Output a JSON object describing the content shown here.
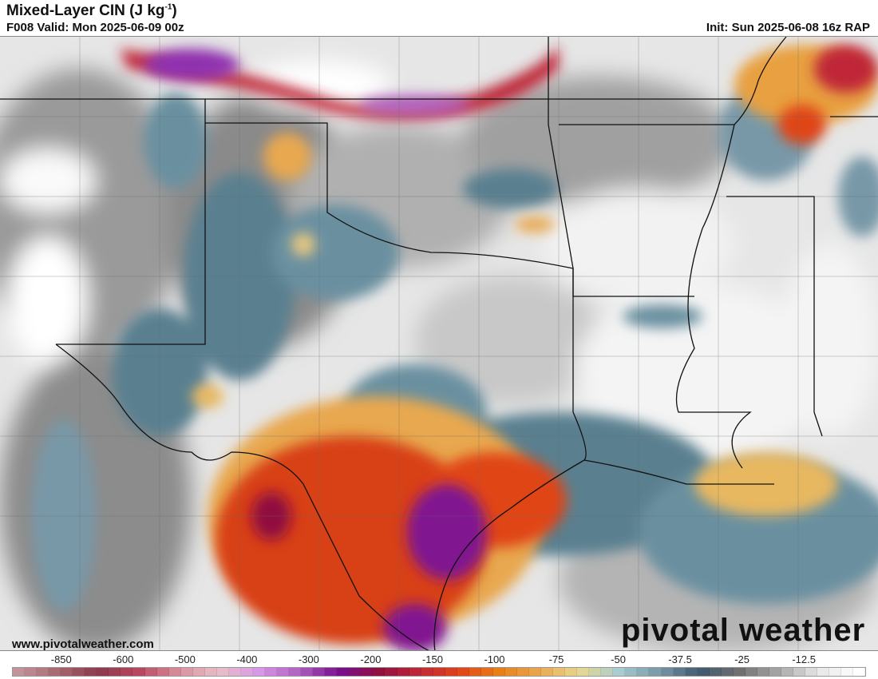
{
  "header": {
    "title": "Mixed-Layer CIN (J kg",
    "title_unit_exp": "-1",
    "title_close": ")",
    "valid": "F008 Valid: Mon 2025-06-09 00z",
    "init": "Init: Sun 2025-06-08 16z RAP"
  },
  "footer": {
    "url": "www.pivotalweather.com",
    "logo": "pivotal weather"
  },
  "colorbar": {
    "ticks": [
      "-850",
      "-600",
      "-500",
      "-400",
      "-300",
      "-200",
      "-150",
      "-100",
      "-75",
      "-50",
      "-37.5",
      "-25",
      "-12.5"
    ],
    "colors": [
      "#c0949a",
      "#a86870",
      "#8c3a4c",
      "#b84860",
      "#d8909c",
      "#e8c0c8",
      "#d898e8",
      "#b060c0",
      "#781090",
      "#901040",
      "#c02838",
      "#e04418",
      "#e88018",
      "#e8a850",
      "#e8d890",
      "#a8ccd0",
      "#7898a8",
      "#405a70",
      "#707070",
      "#a8a8a8",
      "#e8e8e8",
      "#ffffff"
    ],
    "swatch_count": 71
  },
  "legend_colors": {
    "gray_bg": "#b8b8b8",
    "teal": "#5a8090",
    "orange": "#e8a040",
    "red": "#d84018",
    "purple": "#801890"
  }
}
